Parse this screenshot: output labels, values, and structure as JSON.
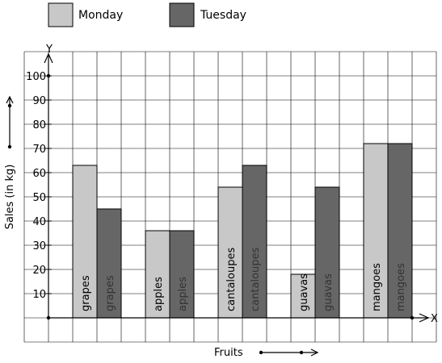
{
  "chart_data": {
    "type": "bar",
    "categories": [
      "grapes",
      "apples",
      "cantaloupes",
      "guavas",
      "mangoes"
    ],
    "series": [
      {
        "name": "Monday",
        "values": [
          63,
          36,
          54,
          18,
          72
        ],
        "color": "#c8c8c8"
      },
      {
        "name": "Tuesday",
        "values": [
          45,
          36,
          63,
          54,
          72
        ],
        "color": "#666666"
      }
    ],
    "xlabel": "Fruits",
    "ylabel": "Sales (in kg)",
    "x_axis_letter": "X",
    "y_axis_letter": "Y",
    "ylim": [
      0,
      100
    ],
    "yticks": [
      "10",
      "20",
      "30",
      "40",
      "50",
      "60",
      "70",
      "80",
      "90",
      "100"
    ],
    "grid": true,
    "legend": "top-left"
  }
}
